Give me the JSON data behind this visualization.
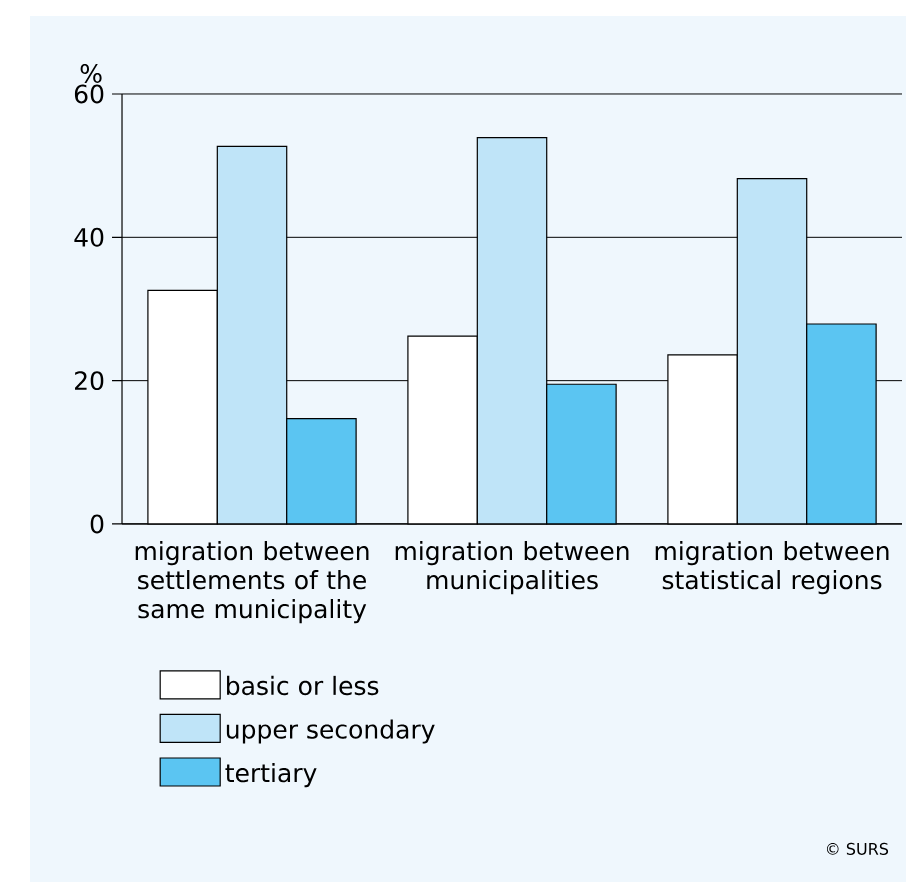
{
  "chart_data": {
    "type": "bar",
    "ylabel": "%",
    "categories": [
      "migration between settlements of the same municipality",
      "migration between municipalities",
      "migration between statistical regions"
    ],
    "series": [
      {
        "name": "basic or less",
        "color": "#ffffff",
        "values": [
          32.6,
          26.2,
          23.6
        ]
      },
      {
        "name": "upper secondary",
        "color": "#bfe4f8",
        "values": [
          52.7,
          53.9,
          48.2
        ]
      },
      {
        "name": "tertiary",
        "color": "#5bc5f2",
        "values": [
          14.7,
          19.5,
          27.9
        ]
      }
    ],
    "ylim": [
      0,
      60
    ],
    "yticks": [
      0,
      20,
      40,
      60
    ],
    "grid": "y",
    "legend": "bottom left",
    "annotations": [
      "© SURS"
    ]
  }
}
